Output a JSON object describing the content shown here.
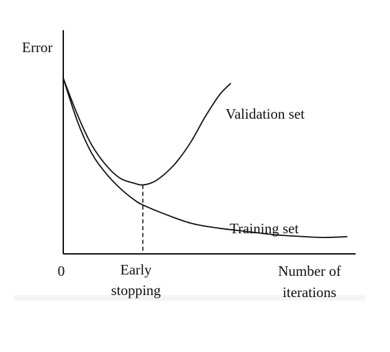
{
  "chart_data": {
    "type": "line",
    "ylabel": "Error",
    "xlabel": "Number of iterations",
    "xlabel_lines": [
      "Number of",
      "iterations"
    ],
    "x_origin_label": "0",
    "marker_label_lines": [
      "Early",
      "stopping"
    ],
    "marker_x": 0.28,
    "xlim": [
      0,
      1
    ],
    "ylim": [
      0,
      1
    ],
    "grid": false,
    "series": [
      {
        "name": "Validation set",
        "x": [
          0,
          0.05,
          0.1,
          0.15,
          0.2,
          0.25,
          0.28,
          0.32,
          0.36,
          0.4,
          0.45,
          0.5,
          0.55,
          0.59
        ],
        "y": [
          1.0,
          0.78,
          0.6,
          0.48,
          0.4,
          0.37,
          0.36,
          0.38,
          0.43,
          0.5,
          0.62,
          0.77,
          0.9,
          0.97
        ]
      },
      {
        "name": "Training set",
        "x": [
          0,
          0.05,
          0.1,
          0.15,
          0.2,
          0.25,
          0.28,
          0.35,
          0.45,
          0.55,
          0.65,
          0.75,
          0.85,
          0.92,
          1.0
        ],
        "y": [
          1.0,
          0.74,
          0.55,
          0.43,
          0.34,
          0.27,
          0.24,
          0.19,
          0.13,
          0.1,
          0.08,
          0.06,
          0.05,
          0.045,
          0.05
        ]
      }
    ]
  }
}
